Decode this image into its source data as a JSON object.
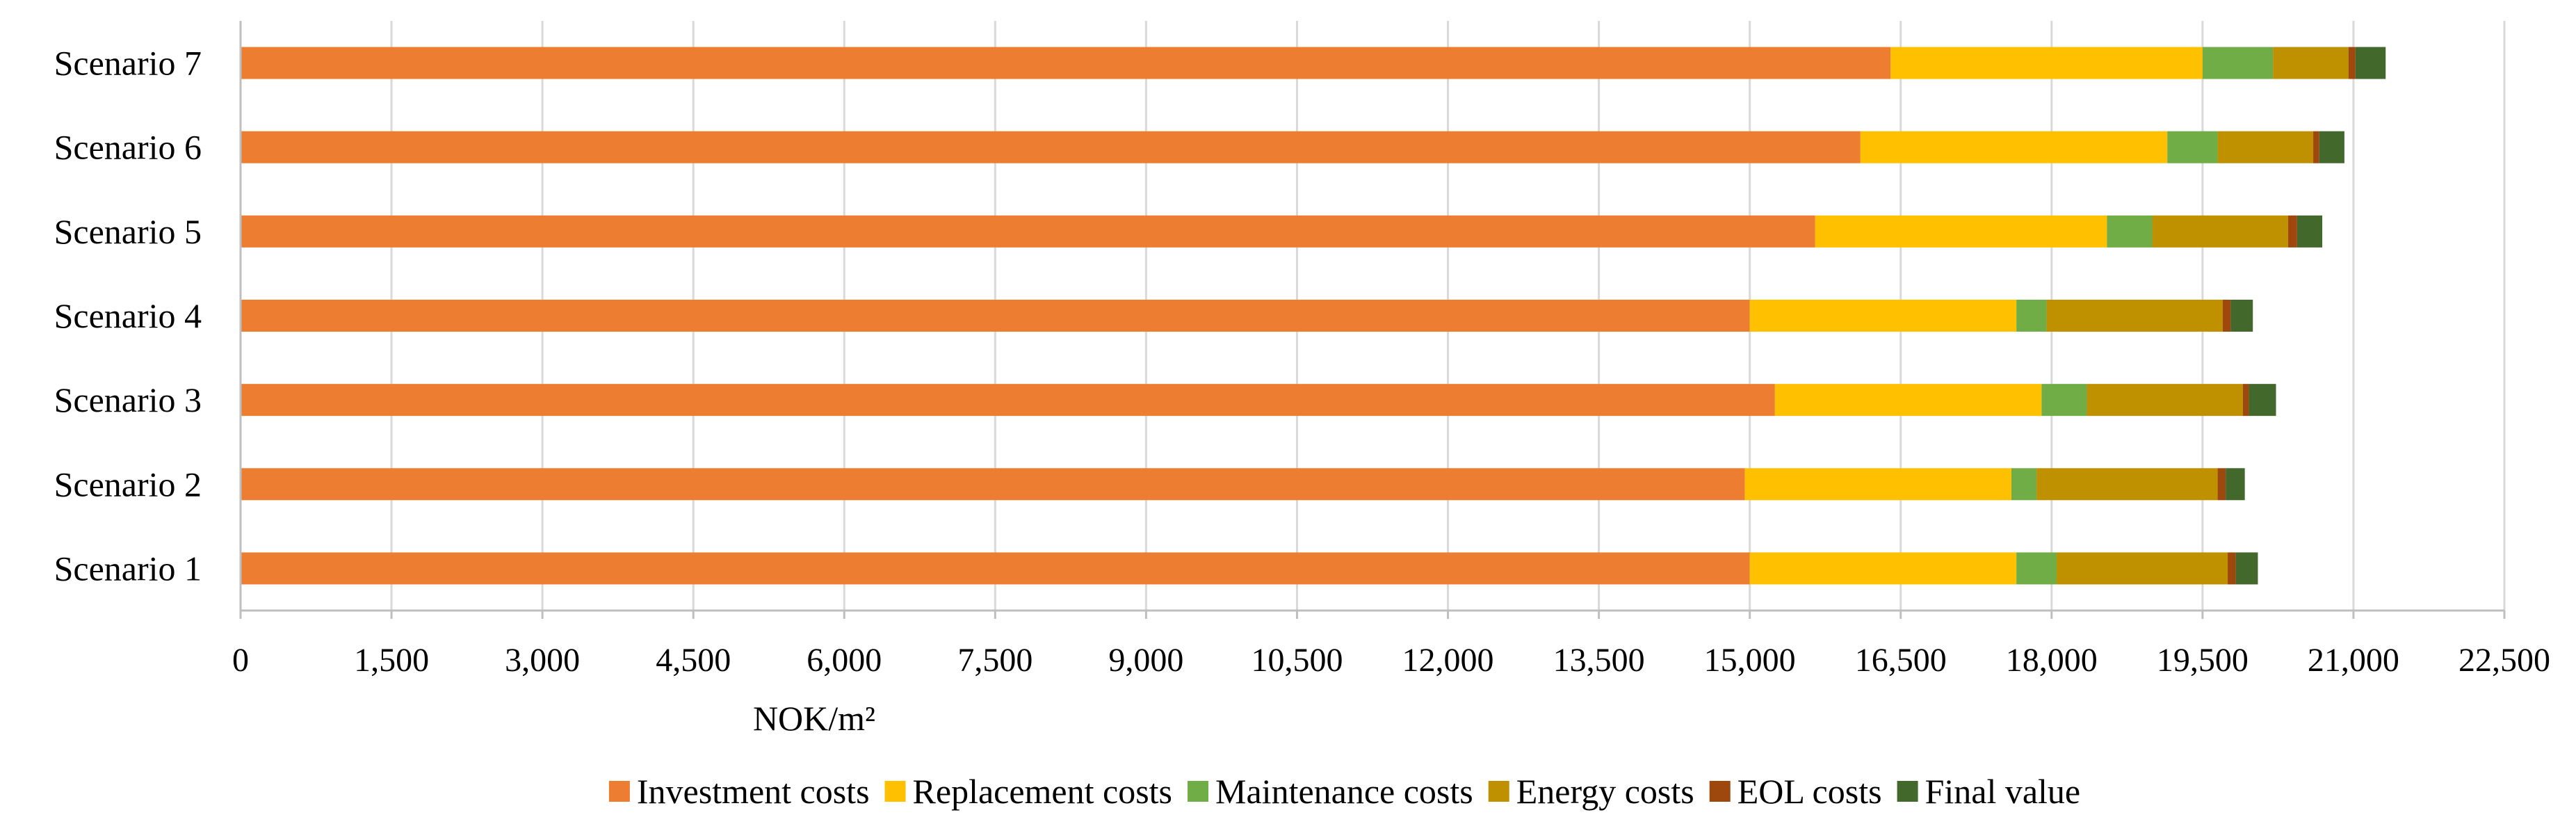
{
  "chart_data": {
    "type": "bar",
    "orientation": "horizontal",
    "stacked": true,
    "categories": [
      "Scenario 1",
      "Scenario 2",
      "Scenario 3",
      "Scenario 4",
      "Scenario 5",
      "Scenario 6",
      "Scenario 7"
    ],
    "series": [
      {
        "name": "Investment costs",
        "color": "#ED7D31",
        "values": [
          15000,
          14950,
          15250,
          15000,
          15650,
          16100,
          16400
        ]
      },
      {
        "name": "Replacement costs",
        "color": "#FFC000",
        "values": [
          2650,
          2650,
          2650,
          2650,
          2900,
          3050,
          3100
        ]
      },
      {
        "name": "Maintenance costs",
        "color": "#70AD47",
        "values": [
          400,
          250,
          450,
          300,
          450,
          500,
          700
        ]
      },
      {
        "name": "Energy costs",
        "color": "#BF9000",
        "values": [
          1700,
          1800,
          1550,
          1750,
          1350,
          950,
          750
        ]
      },
      {
        "name": "EOL costs",
        "color": "#9E480E",
        "values": [
          80,
          80,
          60,
          80,
          90,
          60,
          70
        ]
      },
      {
        "name": "Final value",
        "color": "#43682B",
        "values": [
          220,
          190,
          270,
          220,
          250,
          250,
          300
        ]
      }
    ],
    "xlabel": "NOK/m²",
    "xlim": [
      0,
      22500
    ],
    "xticks": [
      "0",
      "1,500",
      "3,000",
      "4,500",
      "6,000",
      "7,500",
      "9,000",
      "10,500",
      "12,000",
      "13,500",
      "15,000",
      "16,500",
      "18,000",
      "19,500",
      "21,000",
      "22,500"
    ],
    "grid": "vertical",
    "legend_position": "bottom"
  }
}
